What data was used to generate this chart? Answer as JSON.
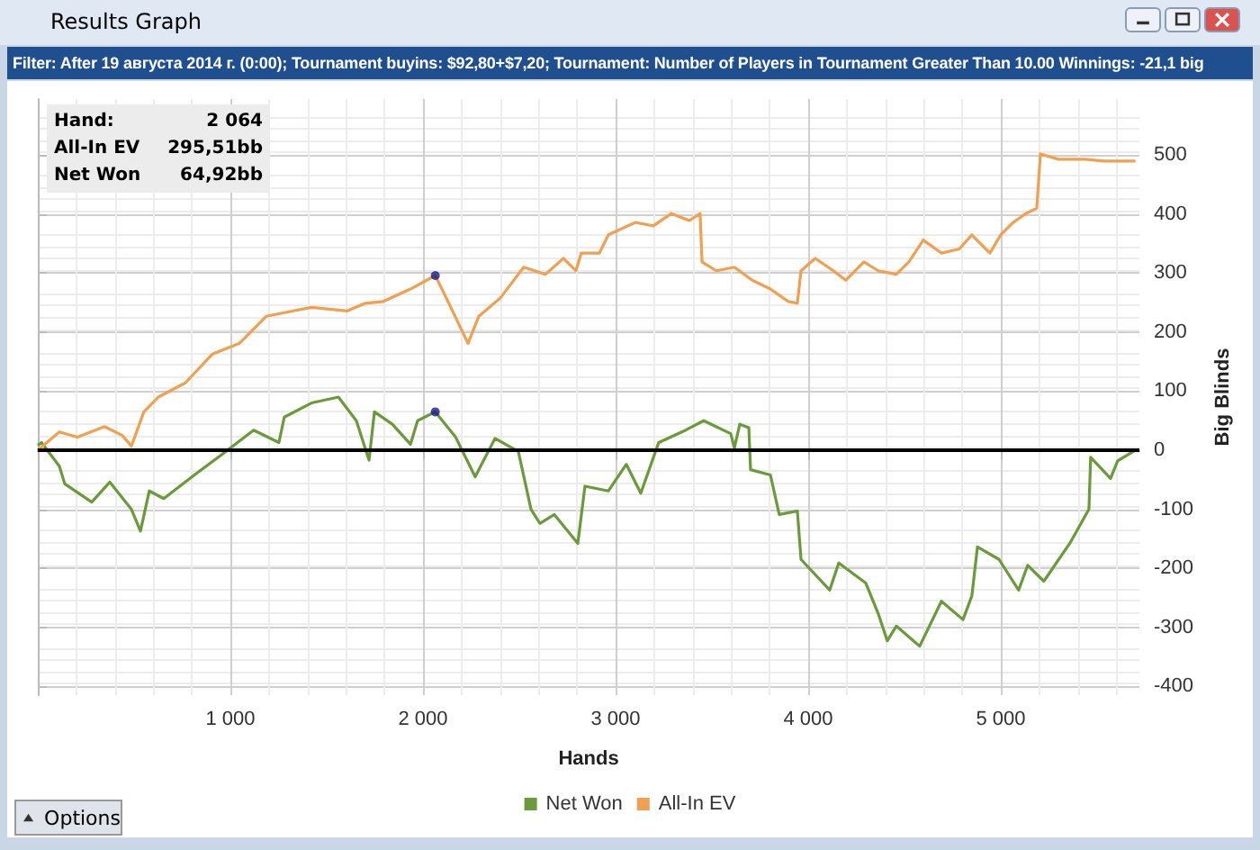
{
  "chart_data": {
    "type": "line",
    "title": "Results Graph",
    "subtitle": "Filter: After 19 августа 2014 г. (0:00); Tournament buyins: $92,80+$7,20; Tournament: Number of Players in Tournament Greater Than 10.00  Winnings: -21,1 big",
    "xlabel": "Hands",
    "ylabel": "Big Blinds",
    "annotations": [
      "Hand:\t2 064",
      "All-In EV\t295,51bb",
      "Net Won\t64,92bb",
      "Options"
    ],
    "xlim": [
      0,
      5720
    ],
    "xticks": [
      {
        "value": 1000,
        "label": "1 000"
      },
      {
        "value": 2000,
        "label": "2 000"
      },
      {
        "value": 3000,
        "label": "3 000"
      },
      {
        "value": 4000,
        "label": "4 000"
      },
      {
        "value": 5000,
        "label": "5 000"
      }
    ],
    "ylim": [
      -415,
      595
    ],
    "yticks": [
      -400,
      -300,
      -200,
      -100,
      0,
      100,
      200,
      300,
      400,
      500
    ],
    "grid": true,
    "legend": "bottom",
    "marker": "none",
    "line_style": "solid",
    "ref_lines": [
      {
        "axis": "y",
        "value": 0,
        "color": "#000000"
      }
    ],
    "series": [
      {
        "name": "Net Won",
        "color": "#6a9a3a",
        "x": [
          0,
          19,
          112,
          140,
          280,
          374,
          486,
          533,
          579,
          654,
          813,
          953,
          1121,
          1252,
          1280,
          1421,
          1561,
          1654,
          1720,
          1748,
          1841,
          1935,
          1972,
          2064,
          2168,
          2271,
          2374,
          2495,
          2561,
          2607,
          2682,
          2804,
          2841,
          2963,
          3056,
          3131,
          3224,
          3364,
          3458,
          3598,
          3617,
          3645,
          3692,
          3701,
          3804,
          3850,
          3944,
          3963,
          4112,
          4159,
          4299,
          4364,
          4411,
          4458,
          4579,
          4692,
          4804,
          4850,
          4879,
          4991,
          5093,
          5140,
          5224,
          5364,
          5458,
          5467,
          5570,
          5607,
          5700
        ],
        "values": [
          8,
          13,
          -27,
          -57,
          -88,
          -54,
          -100,
          -137,
          -69,
          -82,
          -42,
          -8,
          34,
          13,
          56,
          80,
          90,
          50,
          -17,
          65,
          44,
          10,
          50,
          65,
          23,
          -45,
          20,
          -2,
          -100,
          -124,
          -109,
          -158,
          -61,
          -69,
          -24,
          -73,
          13,
          34,
          50,
          28,
          4,
          44,
          38,
          -33,
          -42,
          -109,
          -103,
          -185,
          -237,
          -191,
          -225,
          -277,
          -323,
          -298,
          -332,
          -256,
          -287,
          -247,
          -164,
          -185,
          -237,
          -195,
          -222,
          -155,
          -100,
          -12,
          -48,
          -18,
          0
        ]
      },
      {
        "name": "All-In EV",
        "color": "#f0a050",
        "x": [
          0,
          112,
          206,
          346,
          439,
          486,
          551,
          626,
          766,
          907,
          1047,
          1187,
          1327,
          1421,
          1607,
          1701,
          1794,
          1935,
          2064,
          2121,
          2234,
          2290,
          2402,
          2523,
          2636,
          2729,
          2794,
          2822,
          2916,
          2963,
          3103,
          3196,
          3290,
          3383,
          3439,
          3449,
          3523,
          3617,
          3710,
          3804,
          3897,
          3944,
          3963,
          4037,
          4131,
          4196,
          4290,
          4364,
          4458,
          4523,
          4598,
          4692,
          4785,
          4850,
          4944,
          5000,
          5065,
          5131,
          5187,
          5206,
          5299,
          5439,
          5533,
          5700
        ],
        "values": [
          0,
          31,
          22,
          40,
          25,
          7,
          65,
          90,
          114,
          163,
          181,
          227,
          236,
          242,
          236,
          249,
          252,
          273,
          296,
          258,
          181,
          227,
          258,
          310,
          298,
          325,
          304,
          334,
          334,
          365,
          386,
          380,
          401,
          389,
          401,
          319,
          304,
          310,
          288,
          273,
          252,
          249,
          304,
          325,
          304,
          288,
          319,
          304,
          298,
          319,
          356,
          334,
          341,
          365,
          334,
          365,
          386,
          401,
          410,
          502,
          493,
          493,
          490,
          490
        ]
      },
      {
        "type": "scatter",
        "color": "#1a1a8c",
        "marker": "circle",
        "x": [
          2064,
          2064
        ],
        "values": [
          296,
          65
        ]
      }
    ]
  }
}
